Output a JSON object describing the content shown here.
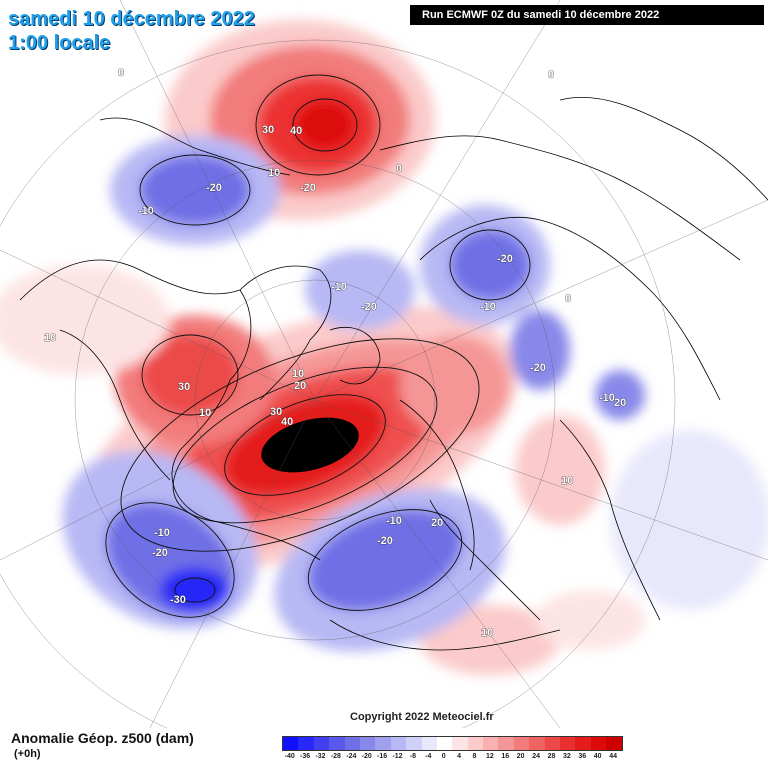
{
  "header": {
    "date_title": "samedi 10 décembre 2022",
    "time_title": "1:00 locale",
    "run_info": "Run ECMWF 0Z du samedi 10 décembre 2022"
  },
  "footer": {
    "variable_title": "Anomalie Géop. z500 (dam)",
    "lead_time": "(+0h)",
    "copyright": "Copyright 2022 Meteociel.fr"
  },
  "legend": {
    "labels": [
      "-40",
      "-36",
      "-32",
      "-28",
      "-24",
      "-20",
      "-16",
      "-12",
      "-8",
      "-4",
      "0",
      "4",
      "8",
      "12",
      "16",
      "20",
      "24",
      "28",
      "32",
      "36",
      "40",
      "44"
    ],
    "colors": [
      "#1010ff",
      "#2828f8",
      "#4040f0",
      "#5858ea",
      "#7070e6",
      "#8888ea",
      "#a0a0ee",
      "#b8b8f4",
      "#d0d0f8",
      "#e8e8fc",
      "#ffffff",
      "#fde4e4",
      "#fbcaca",
      "#f8b0b0",
      "#f59696",
      "#f27c7c",
      "#ef6262",
      "#ec4848",
      "#e93030",
      "#e41c1c",
      "#de0a0a",
      "#cc0000"
    ]
  },
  "colors": {
    "title_text": "#1fa0e8",
    "positive_anomaly": "#ff1a1a",
    "negative_anomaly": "#2020ff",
    "extreme_core": "#000000",
    "coastline": "#000000"
  },
  "contour_labels": [
    "0",
    "0",
    "0",
    "0",
    "-10",
    "-10",
    "-10",
    "-10",
    "-10",
    "-10",
    "-20",
    "-20",
    "-20",
    "-20",
    "-20",
    "-20",
    "-20",
    "-30",
    "10",
    "10",
    "10",
    "10",
    "10",
    "10",
    "20",
    "20",
    "30",
    "30",
    "30",
    "40",
    "40",
    "20"
  ]
}
